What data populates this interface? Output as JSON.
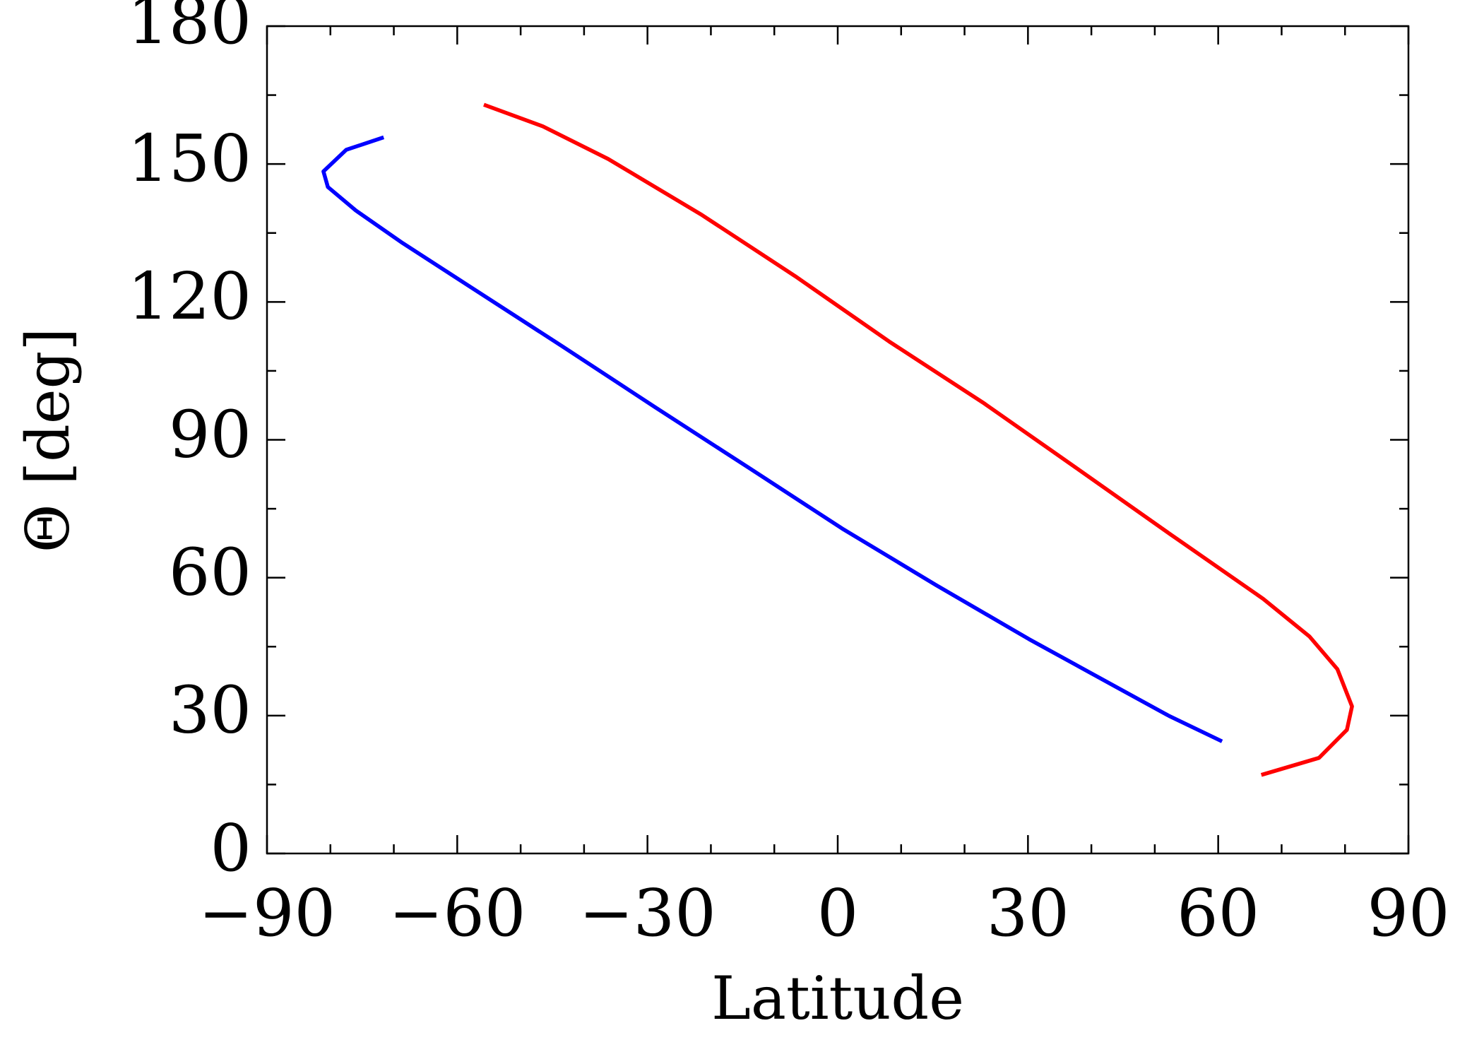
{
  "chart_data": {
    "type": "line",
    "xlabel": "Latitude",
    "ylabel": "Θ [deg]",
    "xlim": [
      -90,
      90
    ],
    "ylim": [
      0,
      180
    ],
    "xticks": [
      {
        "value": -90,
        "label": "−90"
      },
      {
        "value": -60,
        "label": "−60"
      },
      {
        "value": -30,
        "label": "−30"
      },
      0,
      30,
      60,
      90
    ],
    "yticks": [
      0,
      30,
      60,
      90,
      120,
      150,
      180
    ],
    "xminorticks": [
      -80,
      -70,
      -50,
      -40,
      -20,
      -10,
      10,
      20,
      40,
      50,
      70,
      80
    ],
    "yminorticks": [
      15,
      45,
      75,
      105,
      135,
      165
    ],
    "series": [
      {
        "color": "#0000ff",
        "x": [
          -71.6,
          -77.5,
          -81.1,
          -80.4,
          -76,
          -68.6,
          -58.3,
          -43.5,
          -28.8,
          -14,
          0.7,
          15.5,
          30.2,
          45,
          52.3,
          60.6
        ],
        "values": [
          155.8,
          153.1,
          148.4,
          145,
          139.9,
          132.8,
          123.6,
          110.4,
          97.1,
          83.9,
          70.7,
          58.4,
          46.6,
          35.4,
          29.9,
          24.4
        ]
      },
      {
        "color": "#ff0000",
        "x": [
          -55.8,
          -46.5,
          -36.2,
          -21.4,
          -6.7,
          8.1,
          22.9,
          37.6,
          52.3,
          67.1,
          74.4,
          78.8,
          81.1,
          80.3,
          75.9,
          66.8
        ],
        "values": [
          162.9,
          158.2,
          151.1,
          138.9,
          125.6,
          111.4,
          98.1,
          83.9,
          69.6,
          55.4,
          47.2,
          40.1,
          32,
          26.9,
          20.8,
          17.1
        ]
      }
    ]
  }
}
